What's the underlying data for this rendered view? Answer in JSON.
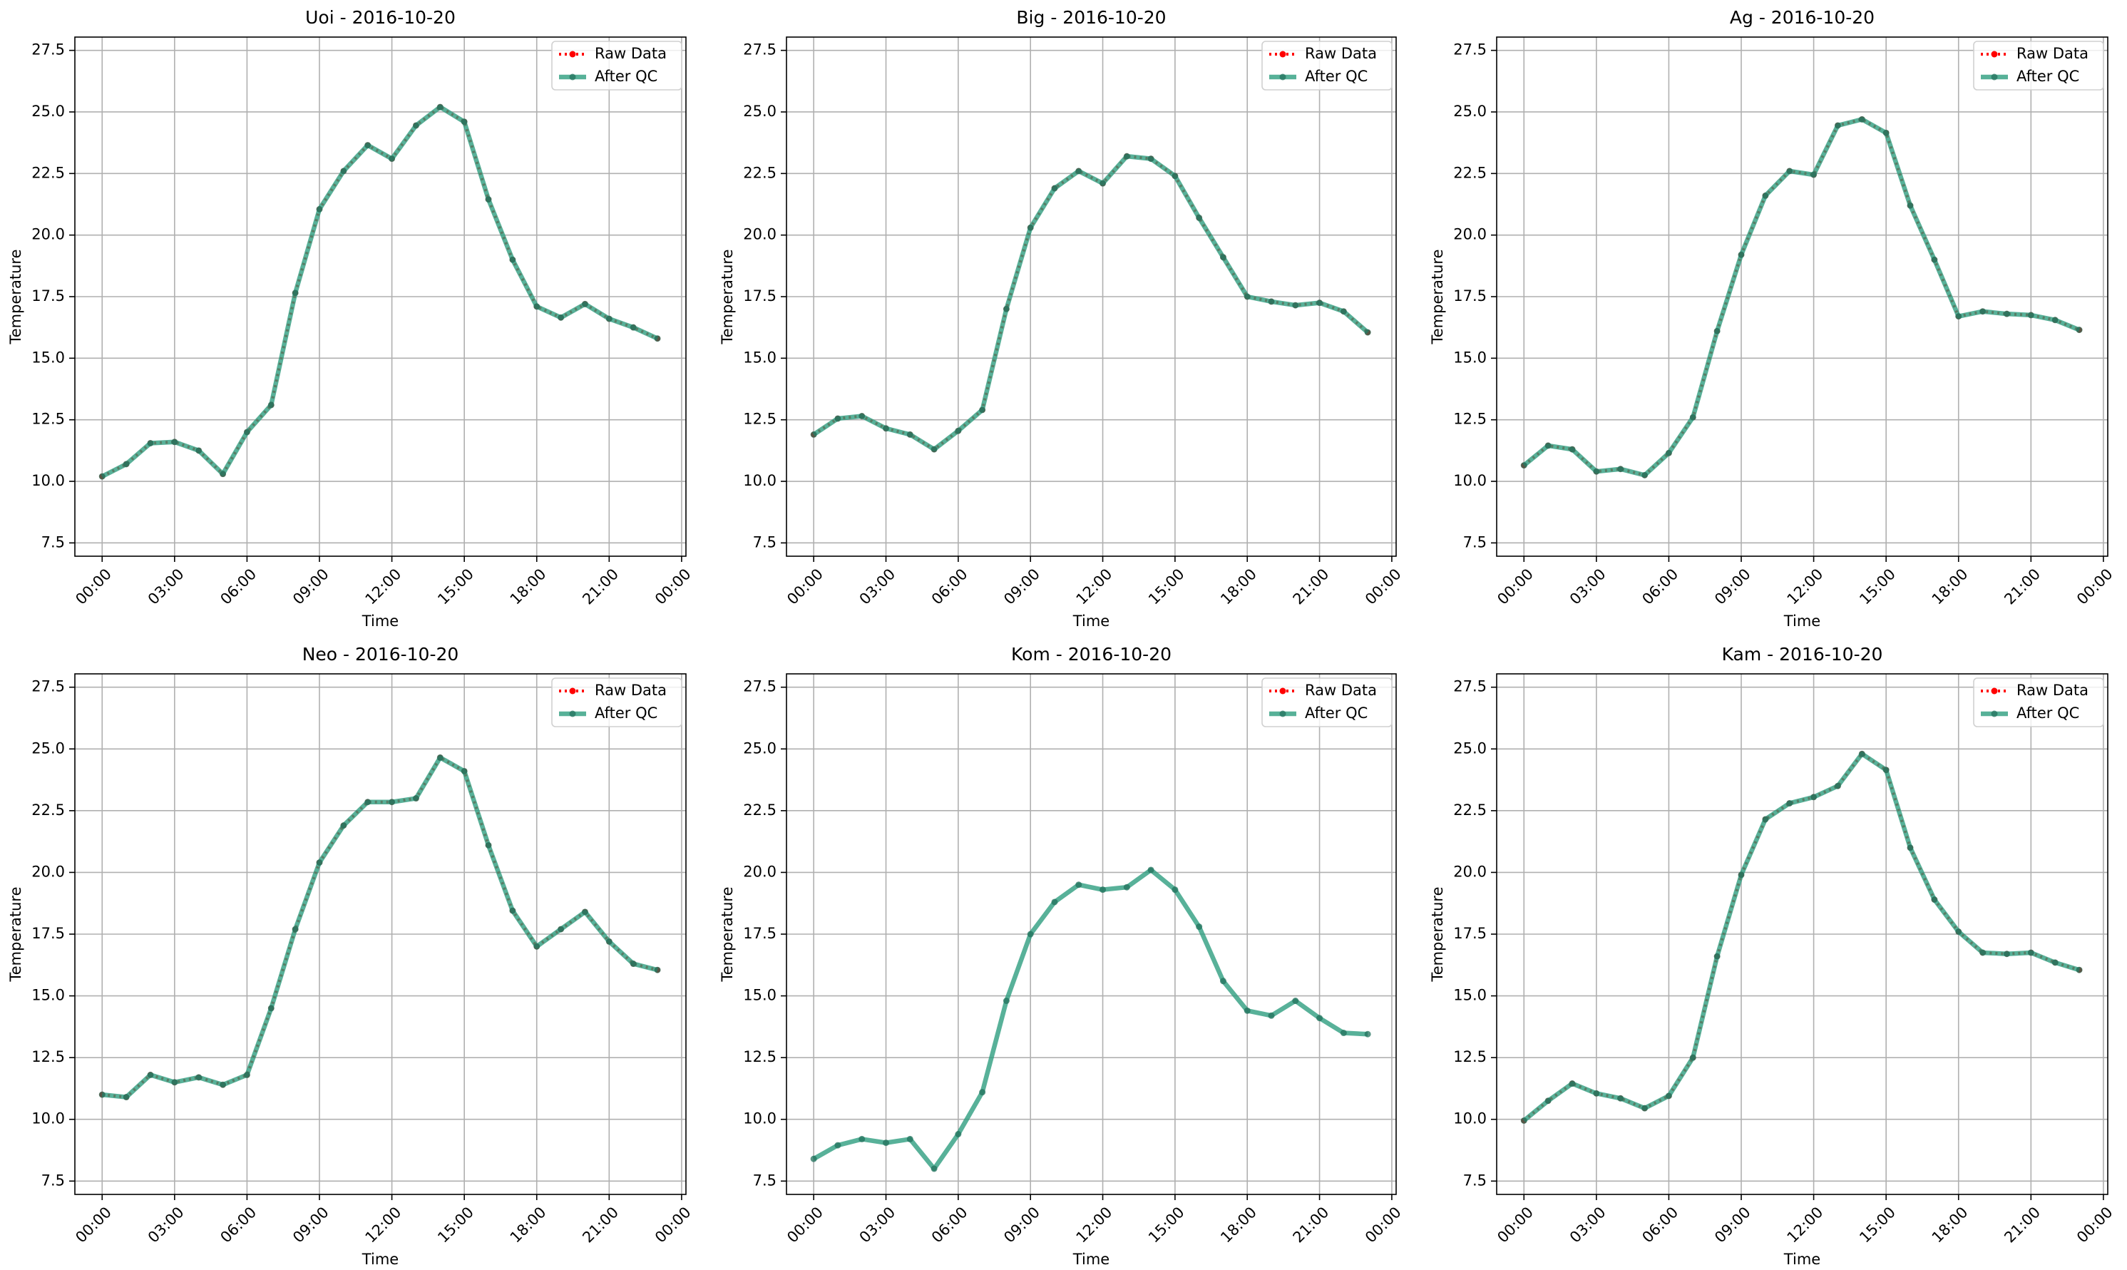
{
  "chart_data": [
    {
      "type": "line",
      "title": "Uoi - 2016-10-20",
      "xlabel": "Time",
      "ylabel": "Temperature",
      "grid": true,
      "legend": "upper right",
      "x": [
        0,
        1,
        2,
        3,
        4,
        5,
        6,
        7,
        8,
        9,
        10,
        11,
        12,
        13,
        14,
        15,
        16,
        17,
        18,
        19,
        20,
        21,
        22,
        23
      ],
      "xlim": [
        -1.13,
        24.18
      ],
      "xticks": [
        {
          "value": 0,
          "label": "00:00"
        },
        {
          "value": 3,
          "label": "03:00"
        },
        {
          "value": 6,
          "label": "06:00"
        },
        {
          "value": 9,
          "label": "09:00"
        },
        {
          "value": 12,
          "label": "12:00"
        },
        {
          "value": 15,
          "label": "15:00"
        },
        {
          "value": 18,
          "label": "18:00"
        },
        {
          "value": 21,
          "label": "21:00"
        },
        {
          "value": 24,
          "label": "00:00"
        }
      ],
      "ylim": [
        6.96,
        28.04
      ],
      "yticks": [
        7.5,
        {
          "value": 10,
          "label": "10.0"
        },
        12.5,
        {
          "value": 15,
          "label": "15.0"
        },
        17.5,
        {
          "value": 20,
          "label": "20.0"
        },
        22.5,
        {
          "value": 25,
          "label": "25.0"
        },
        27.5
      ],
      "series": [
        {
          "name": "Raw Data",
          "color": "#ff0000",
          "values": [
            10.2,
            10.7,
            11.55,
            11.6,
            11.25,
            10.3,
            12.0,
            13.1,
            17.65,
            21.05,
            22.6,
            23.65,
            23.1,
            24.45,
            25.2,
            24.6,
            21.45,
            19.0,
            17.1,
            16.65,
            17.2,
            16.6,
            16.25,
            15.8
          ]
        },
        {
          "name": "After QC",
          "color": "#2e9e7f",
          "values": [
            10.2,
            10.7,
            11.55,
            11.6,
            11.25,
            10.3,
            12.0,
            13.1,
            17.65,
            21.05,
            22.6,
            23.65,
            23.1,
            24.45,
            25.2,
            24.6,
            21.45,
            19.0,
            17.1,
            16.65,
            17.2,
            16.6,
            16.25,
            15.8
          ]
        }
      ]
    },
    {
      "type": "line",
      "title": "Big - 2016-10-20",
      "xlabel": "Time",
      "ylabel": "Temperature",
      "grid": true,
      "legend": "upper right",
      "x": [
        0,
        1,
        2,
        3,
        4,
        5,
        6,
        7,
        8,
        9,
        10,
        11,
        12,
        13,
        14,
        15,
        16,
        17,
        18,
        19,
        20,
        21,
        22,
        23
      ],
      "xlim": [
        -1.13,
        24.18
      ],
      "xticks": [
        {
          "value": 0,
          "label": "00:00"
        },
        {
          "value": 3,
          "label": "03:00"
        },
        {
          "value": 6,
          "label": "06:00"
        },
        {
          "value": 9,
          "label": "09:00"
        },
        {
          "value": 12,
          "label": "12:00"
        },
        {
          "value": 15,
          "label": "15:00"
        },
        {
          "value": 18,
          "label": "18:00"
        },
        {
          "value": 21,
          "label": "21:00"
        },
        {
          "value": 24,
          "label": "00:00"
        }
      ],
      "ylim": [
        6.96,
        28.04
      ],
      "yticks": [
        7.5,
        {
          "value": 10,
          "label": "10.0"
        },
        12.5,
        {
          "value": 15,
          "label": "15.0"
        },
        17.5,
        {
          "value": 20,
          "label": "20.0"
        },
        22.5,
        {
          "value": 25,
          "label": "25.0"
        },
        27.5
      ],
      "series": [
        {
          "name": "Raw Data",
          "color": "#ff0000",
          "values": [
            11.9,
            12.55,
            12.65,
            12.15,
            11.9,
            11.3,
            12.05,
            12.9,
            17.0,
            20.3,
            21.9,
            22.6,
            22.1,
            23.2,
            23.1,
            22.4,
            20.7,
            19.1,
            17.5,
            17.3,
            17.15,
            17.25,
            16.9,
            16.05
          ]
        },
        {
          "name": "After QC",
          "color": "#2e9e7f",
          "values": [
            11.9,
            12.55,
            12.65,
            12.15,
            11.9,
            11.3,
            12.05,
            12.9,
            17.0,
            20.3,
            21.9,
            22.6,
            22.1,
            23.2,
            23.1,
            22.4,
            20.7,
            19.1,
            17.5,
            17.3,
            17.15,
            17.25,
            16.9,
            16.05
          ]
        }
      ]
    },
    {
      "type": "line",
      "title": "Ag - 2016-10-20",
      "xlabel": "Time",
      "ylabel": "Temperature",
      "grid": true,
      "legend": "upper right",
      "x": [
        0,
        1,
        2,
        3,
        4,
        5,
        6,
        7,
        8,
        9,
        10,
        11,
        12,
        13,
        14,
        15,
        16,
        17,
        18,
        19,
        20,
        21,
        22,
        23
      ],
      "xlim": [
        -1.13,
        24.18
      ],
      "xticks": [
        {
          "value": 0,
          "label": "00:00"
        },
        {
          "value": 3,
          "label": "03:00"
        },
        {
          "value": 6,
          "label": "06:00"
        },
        {
          "value": 9,
          "label": "09:00"
        },
        {
          "value": 12,
          "label": "12:00"
        },
        {
          "value": 15,
          "label": "15:00"
        },
        {
          "value": 18,
          "label": "18:00"
        },
        {
          "value": 21,
          "label": "21:00"
        },
        {
          "value": 24,
          "label": "00:00"
        }
      ],
      "ylim": [
        6.96,
        28.04
      ],
      "yticks": [
        7.5,
        {
          "value": 10,
          "label": "10.0"
        },
        12.5,
        {
          "value": 15,
          "label": "15.0"
        },
        17.5,
        {
          "value": 20,
          "label": "20.0"
        },
        22.5,
        {
          "value": 25,
          "label": "25.0"
        },
        27.5
      ],
      "series": [
        {
          "name": "Raw Data",
          "color": "#ff0000",
          "values": [
            10.65,
            11.45,
            11.3,
            10.4,
            10.5,
            10.25,
            11.15,
            12.6,
            16.1,
            19.2,
            21.6,
            22.6,
            22.45,
            24.45,
            24.7,
            24.15,
            21.2,
            19.0,
            16.7,
            16.9,
            16.8,
            16.75,
            16.55,
            16.15
          ]
        },
        {
          "name": "After QC",
          "color": "#2e9e7f",
          "values": [
            10.65,
            11.45,
            11.3,
            10.4,
            10.5,
            10.25,
            11.15,
            12.6,
            16.1,
            19.2,
            21.6,
            22.6,
            22.45,
            24.45,
            24.7,
            24.15,
            21.2,
            19.0,
            16.7,
            16.9,
            16.8,
            16.75,
            16.55,
            16.15
          ]
        }
      ]
    },
    {
      "type": "line",
      "title": "Neo - 2016-10-20",
      "xlabel": "Time",
      "ylabel": "Temperature",
      "grid": true,
      "legend": "upper right",
      "x": [
        0,
        1,
        2,
        3,
        4,
        5,
        6,
        7,
        8,
        9,
        10,
        11,
        12,
        13,
        14,
        15,
        16,
        17,
        18,
        19,
        20,
        21,
        22,
        23
      ],
      "xlim": [
        -1.13,
        24.18
      ],
      "xticks": [
        {
          "value": 0,
          "label": "00:00"
        },
        {
          "value": 3,
          "label": "03:00"
        },
        {
          "value": 6,
          "label": "06:00"
        },
        {
          "value": 9,
          "label": "09:00"
        },
        {
          "value": 12,
          "label": "12:00"
        },
        {
          "value": 15,
          "label": "15:00"
        },
        {
          "value": 18,
          "label": "18:00"
        },
        {
          "value": 21,
          "label": "21:00"
        },
        {
          "value": 24,
          "label": "00:00"
        }
      ],
      "ylim": [
        6.96,
        28.04
      ],
      "yticks": [
        7.5,
        {
          "value": 10,
          "label": "10.0"
        },
        12.5,
        {
          "value": 15,
          "label": "15.0"
        },
        17.5,
        {
          "value": 20,
          "label": "20.0"
        },
        22.5,
        {
          "value": 25,
          "label": "25.0"
        },
        27.5
      ],
      "series": [
        {
          "name": "Raw Data",
          "color": "#ff0000",
          "values": [
            11.0,
            10.9,
            11.8,
            11.5,
            11.7,
            11.4,
            11.8,
            14.5,
            17.7,
            20.4,
            21.9,
            22.85,
            22.85,
            23.0,
            24.65,
            24.1,
            21.1,
            18.45,
            17.0,
            17.7,
            18.4,
            17.2,
            16.3,
            16.05
          ]
        },
        {
          "name": "After QC",
          "color": "#2e9e7f",
          "values": [
            11.0,
            10.9,
            11.8,
            11.5,
            11.7,
            11.4,
            11.8,
            14.5,
            17.7,
            20.4,
            21.9,
            22.85,
            22.85,
            23.0,
            24.65,
            24.1,
            21.1,
            18.45,
            17.0,
            17.7,
            18.4,
            17.2,
            16.3,
            16.05
          ]
        }
      ]
    },
    {
      "type": "line",
      "title": "Kom - 2016-10-20",
      "xlabel": "Time",
      "ylabel": "Temperature",
      "grid": true,
      "legend": "upper right",
      "x": [
        0,
        1,
        2,
        3,
        4,
        5,
        6,
        7,
        8,
        9,
        10,
        11,
        12,
        13,
        14,
        15,
        16,
        17,
        18,
        19,
        20,
        21,
        22,
        23
      ],
      "xlim": [
        -1.13,
        24.18
      ],
      "xticks": [
        {
          "value": 0,
          "label": "00:00"
        },
        {
          "value": 3,
          "label": "03:00"
        },
        {
          "value": 6,
          "label": "06:00"
        },
        {
          "value": 9,
          "label": "09:00"
        },
        {
          "value": 12,
          "label": "12:00"
        },
        {
          "value": 15,
          "label": "15:00"
        },
        {
          "value": 18,
          "label": "18:00"
        },
        {
          "value": 21,
          "label": "21:00"
        },
        {
          "value": 24,
          "label": "00:00"
        }
      ],
      "ylim": [
        6.96,
        28.04
      ],
      "yticks": [
        7.5,
        {
          "value": 10,
          "label": "10.0"
        },
        12.5,
        {
          "value": 15,
          "label": "15.0"
        },
        17.5,
        {
          "value": 20,
          "label": "20.0"
        },
        22.5,
        {
          "value": 25,
          "label": "25.0"
        },
        27.5
      ],
      "series": [
        {
          "name": "Raw Data",
          "color": "#ff0000",
          "values": [
            null,
            null,
            null,
            null,
            null,
            null,
            null,
            null,
            null,
            null,
            null,
            null,
            null,
            null,
            null,
            null,
            null,
            null,
            null,
            null,
            null,
            null,
            null,
            null
          ]
        },
        {
          "name": "After QC",
          "color": "#2e9e7f",
          "values": [
            8.4,
            8.95,
            9.2,
            9.05,
            9.2,
            8.0,
            9.4,
            11.1,
            14.8,
            17.5,
            18.8,
            19.5,
            19.3,
            19.4,
            20.1,
            19.3,
            17.8,
            15.6,
            14.4,
            14.2,
            14.8,
            14.1,
            13.5,
            13.45
          ]
        }
      ]
    },
    {
      "type": "line",
      "title": "Kam - 2016-10-20",
      "xlabel": "Time",
      "ylabel": "Temperature",
      "grid": true,
      "legend": "upper right",
      "x": [
        0,
        1,
        2,
        3,
        4,
        5,
        6,
        7,
        8,
        9,
        10,
        11,
        12,
        13,
        14,
        15,
        16,
        17,
        18,
        19,
        20,
        21,
        22,
        23
      ],
      "xlim": [
        -1.13,
        24.18
      ],
      "xticks": [
        {
          "value": 0,
          "label": "00:00"
        },
        {
          "value": 3,
          "label": "03:00"
        },
        {
          "value": 6,
          "label": "06:00"
        },
        {
          "value": 9,
          "label": "09:00"
        },
        {
          "value": 12,
          "label": "12:00"
        },
        {
          "value": 15,
          "label": "15:00"
        },
        {
          "value": 18,
          "label": "18:00"
        },
        {
          "value": 21,
          "label": "21:00"
        },
        {
          "value": 24,
          "label": "00:00"
        }
      ],
      "ylim": [
        6.96,
        28.04
      ],
      "yticks": [
        7.5,
        {
          "value": 10,
          "label": "10.0"
        },
        12.5,
        {
          "value": 15,
          "label": "15.0"
        },
        17.5,
        {
          "value": 20,
          "label": "20.0"
        },
        22.5,
        {
          "value": 25,
          "label": "25.0"
        },
        27.5
      ],
      "series": [
        {
          "name": "Raw Data",
          "color": "#ff0000",
          "values": [
            9.95,
            10.75,
            11.45,
            11.05,
            10.85,
            10.45,
            10.95,
            12.5,
            16.6,
            19.9,
            22.15,
            22.8,
            23.05,
            23.5,
            24.8,
            24.15,
            21.0,
            18.9,
            17.6,
            16.75,
            16.7,
            16.75,
            16.35,
            16.05
          ]
        },
        {
          "name": "After QC",
          "color": "#2e9e7f",
          "values": [
            9.95,
            10.75,
            11.45,
            11.05,
            10.85,
            10.45,
            10.95,
            12.5,
            16.6,
            19.9,
            22.15,
            22.8,
            23.05,
            23.5,
            24.8,
            24.15,
            21.0,
            18.9,
            17.6,
            16.75,
            16.7,
            16.75,
            16.35,
            16.05
          ]
        }
      ]
    }
  ]
}
